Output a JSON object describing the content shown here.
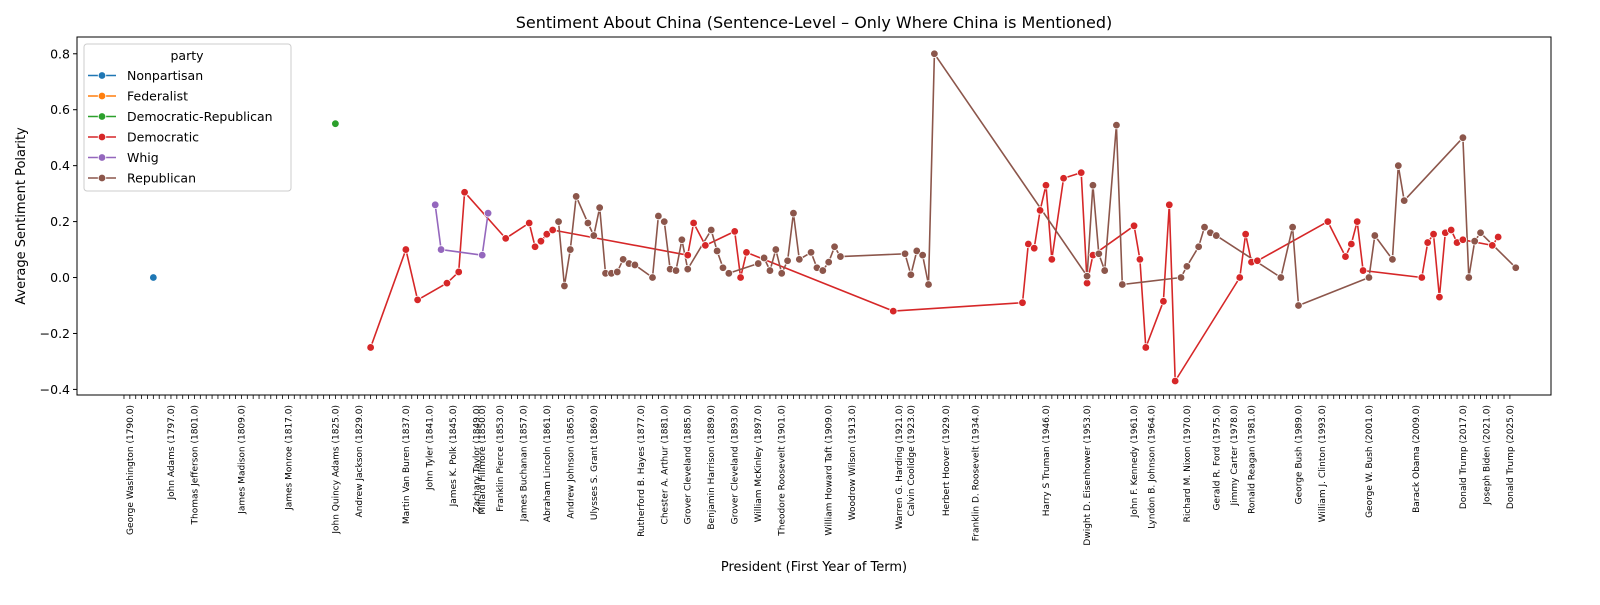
{
  "chart_data": {
    "type": "line",
    "title": "Sentiment About China (Sentence-Level – Only Where China is Mentioned)",
    "xlabel": "President (First Year of Term)",
    "ylabel": "Average Sentiment Polarity",
    "x_range": [
      1781,
      2032
    ],
    "ylim": [
      -0.42,
      0.86
    ],
    "yticks": [
      -0.4,
      -0.2,
      0.0,
      0.2,
      0.4,
      0.6,
      0.8
    ],
    "ytick_labels": [
      "−0.4",
      "−0.2",
      "0.0",
      "0.2",
      "0.4",
      "0.6",
      "0.8"
    ],
    "grid": false,
    "legend_placement": "upper-left",
    "legend_title": "party",
    "xtick_labels": [
      {
        "year": 1790,
        "label": "George Washington (1790.0)"
      },
      {
        "year": 1797,
        "label": "John Adams (1797.0)"
      },
      {
        "year": 1801,
        "label": "Thomas Jefferson (1801.0)"
      },
      {
        "year": 1809,
        "label": "James Madison (1809.0)"
      },
      {
        "year": 1817,
        "label": "James Monroe (1817.0)"
      },
      {
        "year": 1825,
        "label": "John Quincy Adams (1825.0)"
      },
      {
        "year": 1829,
        "label": "Andrew Jackson (1829.0)"
      },
      {
        "year": 1837,
        "label": "Martin Van Buren (1837.0)"
      },
      {
        "year": 1841,
        "label": "John Tyler (1841.0)"
      },
      {
        "year": 1845,
        "label": "James K. Polk (1845.0)"
      },
      {
        "year": 1849,
        "label": "Zachary Taylor (1849.0)"
      },
      {
        "year": 1850,
        "label": "Millard Fillmore (1850.0)"
      },
      {
        "year": 1853,
        "label": "Franklin Pierce (1853.0)"
      },
      {
        "year": 1857,
        "label": "James Buchanan (1857.0)"
      },
      {
        "year": 1861,
        "label": "Abraham Lincoln (1861.0)"
      },
      {
        "year": 1865,
        "label": "Andrew Johnson (1865.0)"
      },
      {
        "year": 1869,
        "label": "Ulysses S. Grant (1869.0)"
      },
      {
        "year": 1877,
        "label": "Rutherford B. Hayes (1877.0)"
      },
      {
        "year": 1881,
        "label": "Chester A. Arthur (1881.0)"
      },
      {
        "year": 1885,
        "label": "Grover Cleveland (1885.0)"
      },
      {
        "year": 1889,
        "label": "Benjamin Harrison (1889.0)"
      },
      {
        "year": 1893,
        "label": "Grover Cleveland (1893.0)"
      },
      {
        "year": 1897,
        "label": "William McKinley (1897.0)"
      },
      {
        "year": 1901,
        "label": "Theodore Roosevelt (1901.0)"
      },
      {
        "year": 1909,
        "label": "William Howard Taft (1909.0)"
      },
      {
        "year": 1913,
        "label": "Woodrow Wilson (1913.0)"
      },
      {
        "year": 1921,
        "label": "Warren G. Harding (1921.0)"
      },
      {
        "year": 1923,
        "label": "Calvin Coolidge (1923.0)"
      },
      {
        "year": 1929,
        "label": "Herbert Hoover (1929.0)"
      },
      {
        "year": 1934,
        "label": "Franklin D. Roosevelt (1934.0)"
      },
      {
        "year": 1946,
        "label": "Harry S Truman (1946.0)"
      },
      {
        "year": 1953,
        "label": "Dwight D. Eisenhower (1953.0)"
      },
      {
        "year": 1961,
        "label": "John F. Kennedy (1961.0)"
      },
      {
        "year": 1964,
        "label": "Lyndon B. Johnson (1964.0)"
      },
      {
        "year": 1970,
        "label": "Richard M. Nixon (1970.0)"
      },
      {
        "year": 1975,
        "label": "Gerald R. Ford (1975.0)"
      },
      {
        "year": 1978,
        "label": "Jimmy Carter (1978.0)"
      },
      {
        "year": 1981,
        "label": "Ronald Reagan (1981.0)"
      },
      {
        "year": 1989,
        "label": "George Bush (1989.0)"
      },
      {
        "year": 1993,
        "label": "William J. Clinton (1993.0)"
      },
      {
        "year": 2001,
        "label": "George W. Bush (2001.0)"
      },
      {
        "year": 2009,
        "label": "Barack Obama (2009.0)"
      },
      {
        "year": 2017,
        "label": "Donald Trump (2017.0)"
      },
      {
        "year": 2021,
        "label": "Joseph Biden (2021.0)"
      },
      {
        "year": 2025,
        "label": "Donald Trump (2025.0)"
      }
    ],
    "series": [
      {
        "name": "Nonpartisan",
        "color": "#1f77b4",
        "points": [
          [
            1794,
            0.0
          ]
        ]
      },
      {
        "name": "Federalist",
        "color": "#ff7f0e",
        "points": []
      },
      {
        "name": "Democratic-Republican",
        "color": "#2ca02c",
        "points": [
          [
            1825,
            0.55
          ]
        ]
      },
      {
        "name": "Democratic",
        "color": "#d62728",
        "points": [
          [
            1831,
            -0.25
          ],
          [
            1837,
            0.1
          ],
          [
            1839,
            -0.08
          ],
          [
            1844,
            -0.02
          ],
          [
            1846,
            0.02
          ],
          [
            1847,
            0.305
          ],
          [
            1854,
            0.14
          ],
          [
            1858,
            0.195
          ],
          [
            1859,
            0.11
          ],
          [
            1860,
            0.13
          ],
          [
            1861,
            0.155
          ],
          [
            1862,
            0.17
          ],
          [
            1885,
            0.08
          ],
          [
            1886,
            0.195
          ],
          [
            1888,
            0.115
          ],
          [
            1893,
            0.165
          ],
          [
            1894,
            0.0
          ],
          [
            1895,
            0.09
          ],
          [
            1920,
            -0.12
          ],
          [
            1942,
            -0.09
          ],
          [
            1943,
            0.12
          ],
          [
            1944,
            0.105
          ],
          [
            1945,
            0.24
          ],
          [
            1946,
            0.33
          ],
          [
            1947,
            0.065
          ],
          [
            1949,
            0.355
          ],
          [
            1952,
            0.375
          ],
          [
            1953,
            -0.02
          ],
          [
            1954,
            0.08
          ],
          [
            1961,
            0.185
          ],
          [
            1962,
            0.065
          ],
          [
            1963,
            -0.25
          ],
          [
            1966,
            -0.085
          ],
          [
            1967,
            0.26
          ],
          [
            1968,
            -0.37
          ],
          [
            1979,
            0.0
          ],
          [
            1980,
            0.155
          ],
          [
            1981,
            0.055
          ],
          [
            1982,
            0.06
          ],
          [
            1994,
            0.2
          ],
          [
            1997,
            0.075
          ],
          [
            1998,
            0.12
          ],
          [
            1999,
            0.2
          ],
          [
            2000,
            0.025
          ],
          [
            2010,
            0.0
          ],
          [
            2011,
            0.125
          ],
          [
            2012,
            0.155
          ],
          [
            2013,
            -0.07
          ],
          [
            2014,
            0.16
          ],
          [
            2015,
            0.17
          ],
          [
            2016,
            0.125
          ],
          [
            2017,
            0.135
          ],
          [
            2022,
            0.115
          ],
          [
            2023,
            0.145
          ]
        ]
      },
      {
        "name": "Whig",
        "color": "#9467bd",
        "points": [
          [
            1842,
            0.26
          ],
          [
            1843,
            0.1
          ],
          [
            1850,
            0.08
          ],
          [
            1851,
            0.23
          ]
        ]
      },
      {
        "name": "Republican",
        "color": "#8c564b",
        "points": [
          [
            1863,
            0.2
          ],
          [
            1864,
            -0.03
          ],
          [
            1865,
            0.1
          ],
          [
            1866,
            0.29
          ],
          [
            1868,
            0.195
          ],
          [
            1869,
            0.15
          ],
          [
            1870,
            0.25
          ],
          [
            1871,
            0.015
          ],
          [
            1872,
            0.015
          ],
          [
            1873,
            0.02
          ],
          [
            1874,
            0.065
          ],
          [
            1875,
            0.05
          ],
          [
            1876,
            0.045
          ],
          [
            1879,
            0.0
          ],
          [
            1880,
            0.22
          ],
          [
            1881,
            0.2
          ],
          [
            1882,
            0.03
          ],
          [
            1883,
            0.025
          ],
          [
            1884,
            0.135
          ],
          [
            1885,
            0.03
          ],
          [
            1889,
            0.17
          ],
          [
            1890,
            0.095
          ],
          [
            1891,
            0.035
          ],
          [
            1892,
            0.015
          ],
          [
            1897,
            0.05
          ],
          [
            1898,
            0.07
          ],
          [
            1899,
            0.025
          ],
          [
            1900,
            0.1
          ],
          [
            1901,
            0.015
          ],
          [
            1902,
            0.06
          ],
          [
            1903,
            0.23
          ],
          [
            1904,
            0.065
          ],
          [
            1906,
            0.09
          ],
          [
            1907,
            0.035
          ],
          [
            1908,
            0.025
          ],
          [
            1909,
            0.055
          ],
          [
            1910,
            0.11
          ],
          [
            1911,
            0.075
          ],
          [
            1922,
            0.085
          ],
          [
            1923,
            0.01
          ],
          [
            1924,
            0.095
          ],
          [
            1925,
            0.08
          ],
          [
            1926,
            -0.025
          ],
          [
            1927,
            0.8
          ],
          [
            1953,
            0.005
          ],
          [
            1954,
            0.33
          ],
          [
            1955,
            0.085
          ],
          [
            1956,
            0.025
          ],
          [
            1958,
            0.545
          ],
          [
            1959,
            -0.025
          ],
          [
            1969,
            0.0
          ],
          [
            1970,
            0.04
          ],
          [
            1972,
            0.11
          ],
          [
            1973,
            0.18
          ],
          [
            1974,
            0.16
          ],
          [
            1975,
            0.15
          ],
          [
            1986,
            0.0
          ],
          [
            1988,
            0.18
          ],
          [
            1989,
            -0.1
          ],
          [
            2001,
            0.0
          ],
          [
            2002,
            0.15
          ],
          [
            2005,
            0.065
          ],
          [
            2006,
            0.4
          ],
          [
            2007,
            0.275
          ],
          [
            2017,
            0.5
          ],
          [
            2018,
            0.0
          ],
          [
            2019,
            0.13
          ],
          [
            2020,
            0.16
          ],
          [
            2026,
            0.035
          ]
        ]
      }
    ]
  }
}
